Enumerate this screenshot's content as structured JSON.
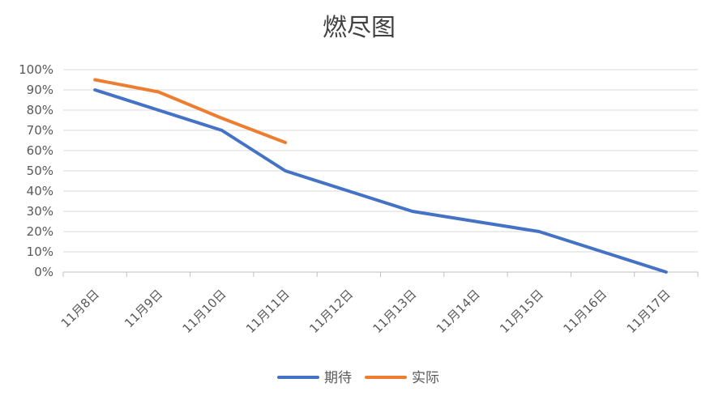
{
  "chart_data": {
    "type": "line",
    "title": "燃尽图",
    "categories": [
      "11月8日",
      "11月9日",
      "11月10日",
      "11月11日",
      "11月12日",
      "11月13日",
      "11月14日",
      "11月15日",
      "11月16日",
      "11月17日"
    ],
    "series": [
      {
        "name": "期待",
        "color": "#4472C4",
        "values": [
          90,
          80,
          70,
          50,
          40,
          30,
          25,
          20,
          10,
          0
        ]
      },
      {
        "name": "实际",
        "color": "#ED7D31",
        "values": [
          95,
          89,
          76,
          64,
          null,
          null,
          null,
          null,
          null,
          null
        ]
      }
    ],
    "ylim": [
      0,
      100
    ],
    "ytick_step": 10,
    "ytick_format": "percent",
    "grid": true,
    "legend_position": "bottom"
  }
}
